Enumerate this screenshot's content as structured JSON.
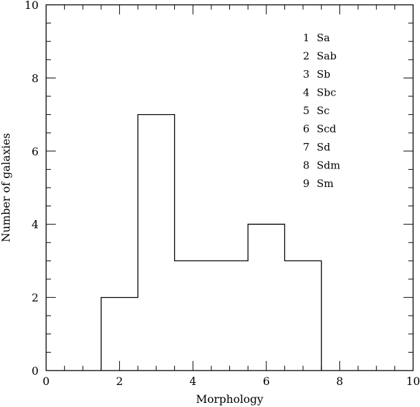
{
  "chart_data": {
    "type": "bar",
    "style": "step-histogram",
    "x": [
      2,
      3,
      4,
      5,
      6,
      7
    ],
    "values": [
      2,
      7,
      3,
      3,
      4,
      3
    ],
    "bin_width": 1,
    "xlabel": "Morphology",
    "ylabel": "Number of galaxies",
    "xlim": [
      0,
      10
    ],
    "ylim": [
      0,
      10
    ],
    "x_ticks": [
      "0",
      "2",
      "4",
      "6",
      "8",
      "10"
    ],
    "y_ticks": [
      "0",
      "2",
      "4",
      "6",
      "8",
      "10"
    ],
    "grid": false,
    "legend_placement": "top-right",
    "legend": [
      {
        "num": "1",
        "label": "Sa"
      },
      {
        "num": "2",
        "label": "Sab"
      },
      {
        "num": "3",
        "label": "Sb"
      },
      {
        "num": "4",
        "label": "Sbc"
      },
      {
        "num": "5",
        "label": "Sc"
      },
      {
        "num": "6",
        "label": "Scd"
      },
      {
        "num": "7",
        "label": "Sd"
      },
      {
        "num": "8",
        "label": "Sdm"
      },
      {
        "num": "9",
        "label": "Sm"
      }
    ],
    "colors": {
      "line": "#000000",
      "background": "#ffffff"
    }
  }
}
